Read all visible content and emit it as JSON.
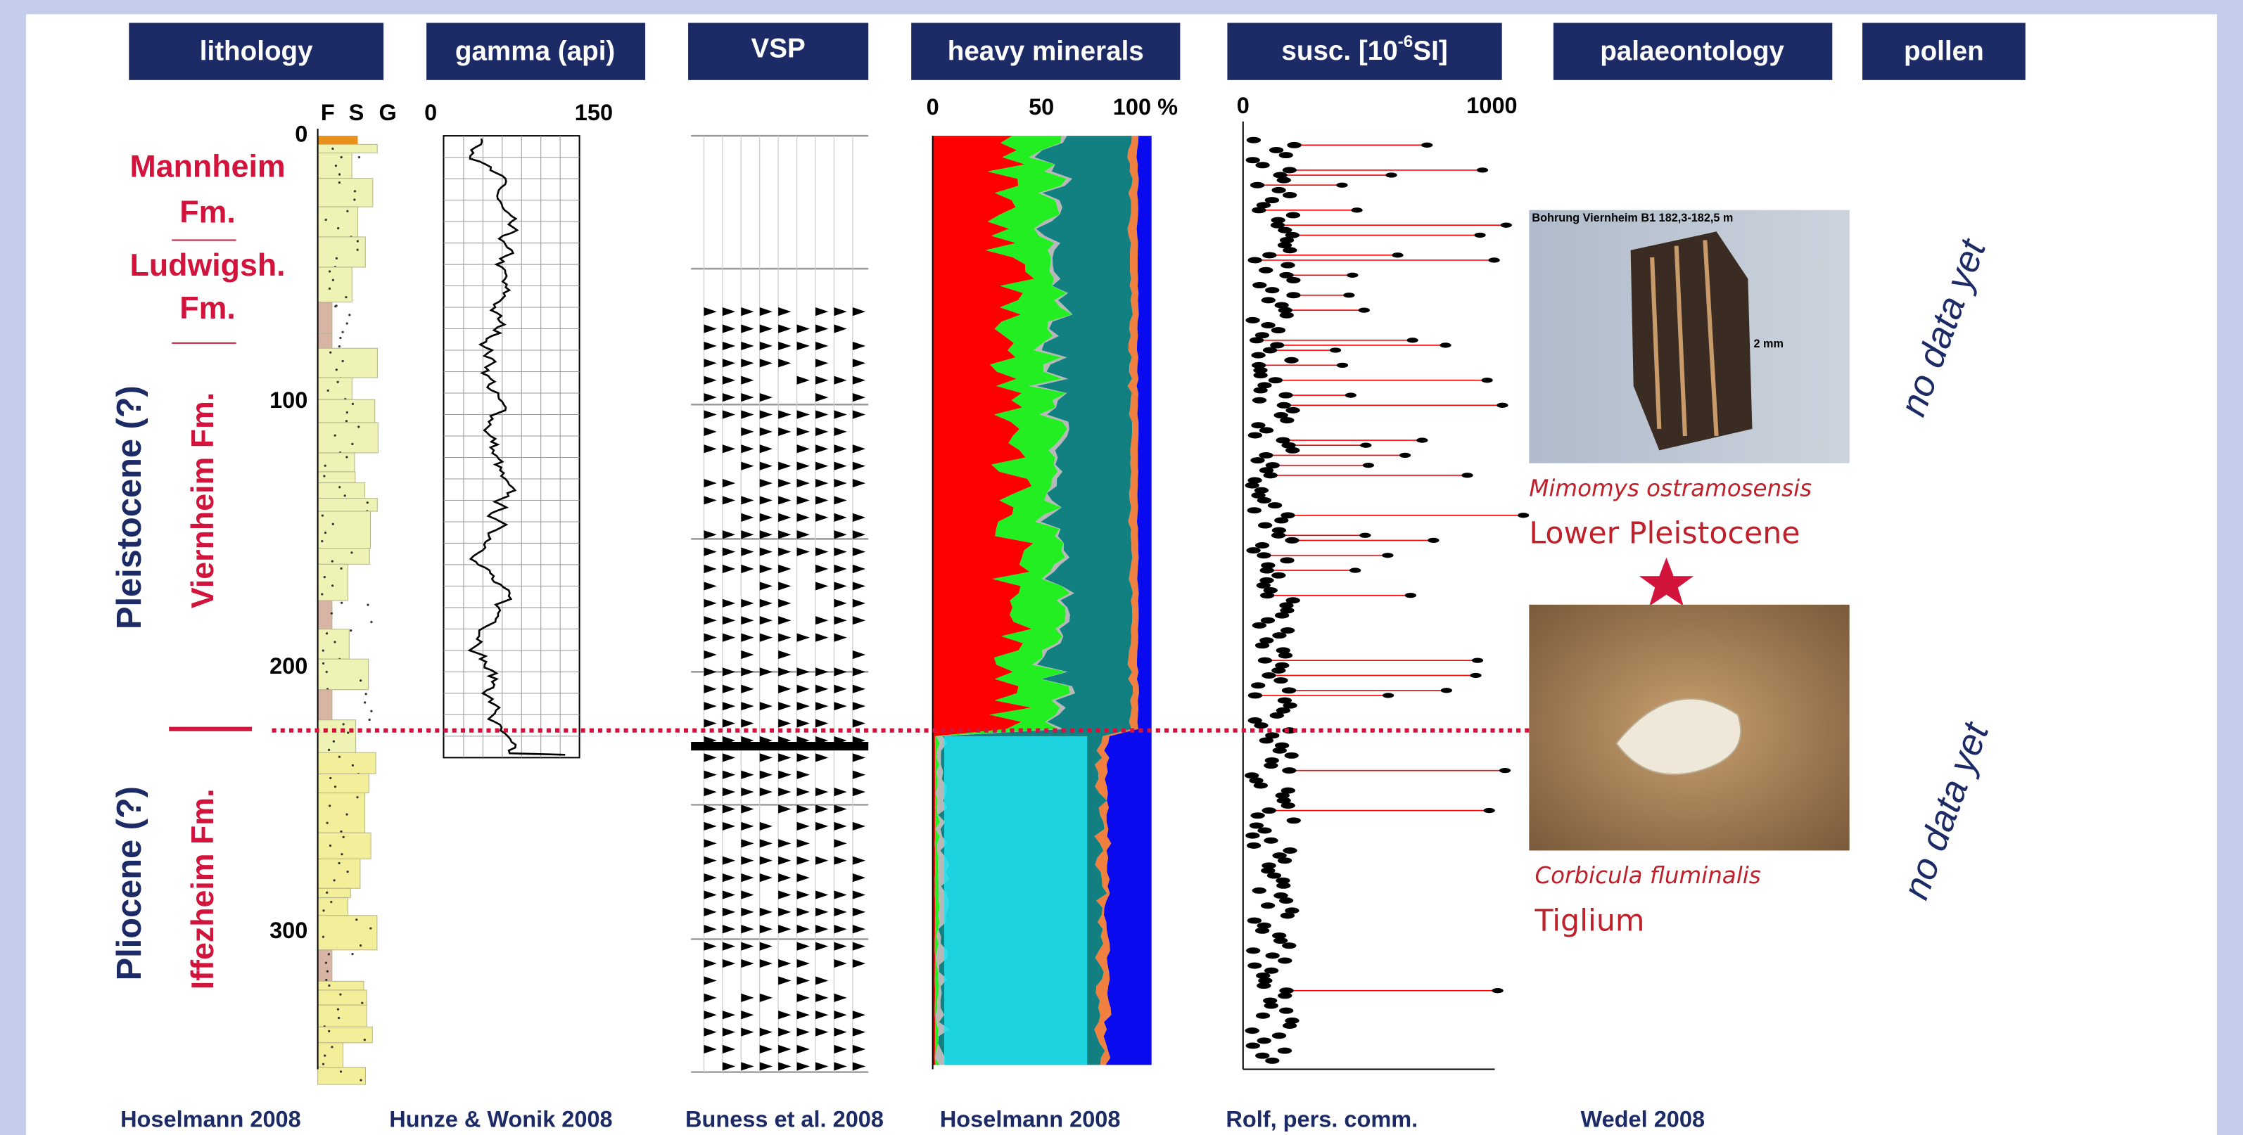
{
  "headers": {
    "lithology": "lithology",
    "gamma": "gamma (api)",
    "vsp": "VSP",
    "heavy_minerals": "heavy minerals",
    "susc": {
      "base": "susc. [10",
      "exponent": "-6",
      "unit": "SI]"
    },
    "palaeontology": "palaeontology",
    "pollen": "pollen"
  },
  "depth_ticks": [
    "0",
    "100",
    "200",
    "300"
  ],
  "grain_size_labels": [
    "F",
    "S",
    "G"
  ],
  "gamma_ticks": [
    "0",
    "150"
  ],
  "heavy_minerals_ticks": [
    "0",
    "50",
    "100 %"
  ],
  "susc_ticks": [
    "0",
    "1000"
  ],
  "formations": {
    "mannheim": [
      "Mannheim",
      "Fm."
    ],
    "ludwigshafen": [
      "Ludwigsh.",
      "Fm."
    ],
    "viernheim": "Viernheim Fm.",
    "iffezheim": "Iffezheim Fm."
  },
  "epochs": {
    "upper": "Pleistocene (?)",
    "lower": "Pliocene (?)"
  },
  "palaeontology": {
    "photo1_caption": "Bohrung Viernheim B1 182,3-182,5 m",
    "scale_label": "2 mm",
    "species1": "Mimomys ostramosensis",
    "age1": "Lower Pleistocene",
    "species2": "Corbicula fluminalis",
    "age2": "Tiglium"
  },
  "pollen": [
    "no data yet",
    "no data yet"
  ],
  "sources": [
    "Hoselmann 2008",
    "Hunze & Wonik 2008",
    "Buness et al. 2008",
    "Hoselmann 2008",
    "Rolf, pers. comm.",
    "Wedel 2008"
  ]
}
